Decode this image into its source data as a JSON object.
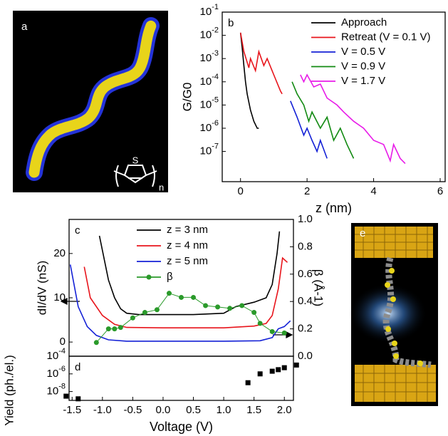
{
  "panels": {
    "a": {
      "label": "a",
      "atom": "S",
      "subscript": "n"
    },
    "e": {
      "label": "e"
    }
  },
  "chart_data": [
    {
      "type": "line",
      "panel_label": "b",
      "xlabel": "z (nm)",
      "ylabel": "G/G0",
      "log_y": true,
      "xlim": [
        -0.55,
        6.15
      ],
      "xticks": [
        0,
        2,
        4,
        6
      ],
      "ylim": [
        5e-09,
        0.1
      ],
      "yticks": [
        {
          "value": 0.1,
          "label": "10-1"
        },
        {
          "value": 0.01,
          "label": "10-2"
        },
        {
          "value": 0.001,
          "label": "10-3"
        },
        {
          "value": 0.0001,
          "label": "10-4"
        },
        {
          "value": 1e-05,
          "label": "10-5"
        },
        {
          "value": 1e-06,
          "label": "10-6"
        },
        {
          "value": 1e-07,
          "label": "10-7"
        }
      ],
      "legend": "upper right",
      "series": [
        {
          "name": "Approach",
          "color": "#000000",
          "x": [
            0,
            0.05,
            0.1,
            0.15,
            0.2,
            0.3,
            0.4,
            0.5,
            0.55
          ],
          "values": [
            0.013,
            0.003,
            0.0005,
            0.0001,
            3e-05,
            6e-06,
            2e-06,
            1e-06,
            1e-06
          ]
        },
        {
          "name": "Retreat (V = 0.1 V)",
          "color": "#e8141b",
          "x": [
            0,
            0.1,
            0.25,
            0.3,
            0.45,
            0.55,
            0.7,
            0.8,
            1.0,
            1.2,
            1.25
          ],
          "values": [
            0.013,
            0.002,
            0.0004,
            0.001,
            0.0003,
            0.002,
            0.0005,
            0.001,
            0.0002,
            4e-05,
            3e-05
          ]
        },
        {
          "name": "V = 0.5 V",
          "color": "#1421d6",
          "x": [
            1.5,
            1.7,
            1.9,
            2.0,
            2.15,
            2.3,
            2.4,
            2.6
          ],
          "values": [
            1.5e-05,
            3e-06,
            5e-07,
            1e-06,
            3e-07,
            1e-07,
            3e-07,
            5e-08
          ]
        },
        {
          "name": "V = 0.9 V",
          "color": "#128a12",
          "x": [
            1.55,
            1.7,
            1.9,
            2.05,
            2.15,
            2.4,
            2.6,
            2.8,
            3.0,
            3.2,
            3.4
          ],
          "values": [
            0.0001,
            3e-05,
            1e-05,
            2e-06,
            5e-06,
            1e-06,
            3e-06,
            3e-07,
            1e-06,
            2e-07,
            5e-08
          ]
        },
        {
          "name": "V = 1.7 V",
          "color": "#e81be8",
          "x": [
            1.8,
            1.9,
            2.0,
            2.2,
            2.4,
            2.6,
            2.9,
            3.1,
            3.4,
            3.7,
            4.0,
            4.3,
            4.5,
            4.6,
            4.8,
            4.95
          ],
          "values": [
            0.0002,
            0.0001,
            0.0002,
            6e-05,
            8e-05,
            2e-05,
            1e-05,
            5e-06,
            2e-06,
            1e-06,
            3e-07,
            2e-07,
            4e-08,
            2e-07,
            5e-08,
            3e-08
          ]
        }
      ]
    },
    {
      "type": "line",
      "panel_label": "c",
      "ylabel": "dI/dV (nS)",
      "y2label": "β (Å-1)",
      "xlim": [
        -1.55,
        2.15
      ],
      "ylim": [
        -3.2,
        27.7
      ],
      "yticks": [
        0,
        10,
        20
      ],
      "y2lim": [
        0,
        1
      ],
      "y2ticks": [
        {
          "value": 0,
          "label": "0.0"
        },
        0.2,
        0.4,
        0.6,
        0.8,
        {
          "value": 1,
          "label": "1.0"
        }
      ],
      "legend": "upper center",
      "series": [
        {
          "name": "z = 3 nm",
          "color": "#000000",
          "x": [
            -1.05,
            -0.9,
            -0.8,
            -0.7,
            -0.6,
            -0.4,
            0,
            0.5,
            1.0,
            1.2,
            1.5,
            1.7,
            1.8,
            1.88,
            1.92
          ],
          "values": [
            24,
            14,
            10,
            7.5,
            6.5,
            6.2,
            6.2,
            6.2,
            6.5,
            8,
            9,
            10,
            13,
            20,
            25
          ]
        },
        {
          "name": "z = 4 nm",
          "color": "#e8141b",
          "x": [
            -1.3,
            -1.2,
            -1.0,
            -0.8,
            -0.6,
            0,
            1.0,
            1.5,
            1.7,
            1.8,
            1.9,
            1.97,
            2.05
          ],
          "values": [
            17,
            10,
            6,
            4,
            3.3,
            3.2,
            3.2,
            3.6,
            4.2,
            6,
            12,
            19,
            18
          ]
        },
        {
          "name": "z = 5 nm",
          "color": "#1421d6",
          "x": [
            -1.53,
            -1.4,
            -1.25,
            -1.1,
            -0.9,
            -0.6,
            1.0,
            1.6,
            1.8,
            1.9,
            2.0,
            2.1
          ],
          "values": [
            17.5,
            8,
            3.5,
            1.5,
            0.5,
            0.2,
            0.2,
            0.3,
            1,
            3,
            3.5,
            4.8
          ]
        },
        {
          "name": "β",
          "color": "#2a9a2a",
          "axis": "y2",
          "markers": true,
          "x": [
            -1.1,
            -0.9,
            -0.8,
            -0.7,
            -0.5,
            -0.3,
            -0.1,
            0.1,
            0.3,
            0.5,
            0.7,
            0.9,
            1.1,
            1.3,
            1.5,
            1.6,
            1.8,
            2.0
          ],
          "values": [
            0.1,
            0.2,
            0.2,
            0.21,
            0.28,
            0.32,
            0.34,
            0.46,
            0.43,
            0.43,
            0.37,
            0.36,
            0.35,
            0.37,
            0.32,
            0.24,
            0.18,
            0.17
          ]
        }
      ]
    },
    {
      "type": "scatter",
      "panel_label": "d",
      "xlabel": "Voltage (V)",
      "ylabel": "Yield (ph./el.)",
      "log_y": true,
      "xlim": [
        -1.55,
        2.15
      ],
      "xticks": [
        -1.5,
        {
          "value": -1,
          "label": "-1.0"
        },
        -0.5,
        {
          "value": 0,
          "label": "0.0"
        },
        0.5,
        {
          "value": 1,
          "label": "1.0"
        },
        1.5,
        {
          "value": 2,
          "label": "2.0"
        }
      ],
      "ylim": [
        1e-09,
        0.0001
      ],
      "yticks": [
        {
          "value": 0.0001,
          "label": "10-4"
        },
        {
          "value": 1e-06,
          "label": "10-6"
        },
        {
          "value": 1e-08,
          "label": "10-8"
        }
      ],
      "color": "#000000",
      "x": [
        -1.6,
        -1.4,
        1.4,
        1.6,
        1.8,
        1.9,
        2.0,
        2.2
      ],
      "values": [
        3e-09,
        1.5e-09,
        1e-07,
        1e-06,
        2e-06,
        3e-06,
        5e-06,
        1e-05
      ]
    }
  ]
}
